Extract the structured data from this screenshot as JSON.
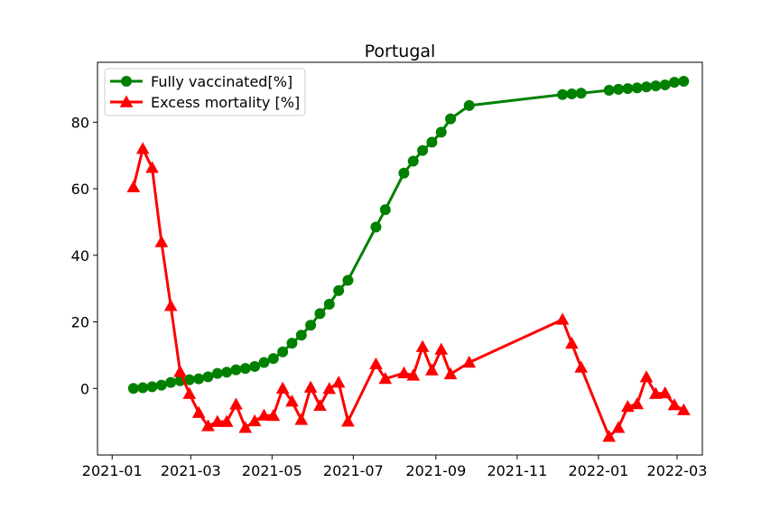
{
  "chart_data": {
    "type": "line",
    "title": "Portugal",
    "xlabel": "",
    "ylabel": "",
    "x_axis_type": "date",
    "xlim": [
      "2020-12-21",
      "2022-03-20"
    ],
    "ylim": [
      -20,
      98
    ],
    "x_ticks": [
      "2021-01-01",
      "2021-03-01",
      "2021-05-01",
      "2021-07-01",
      "2021-09-01",
      "2021-11-01",
      "2022-01-01",
      "2022-03-01"
    ],
    "x_tick_labels": [
      "2021-01",
      "2021-03",
      "2021-05",
      "2021-07",
      "2021-09",
      "2021-11",
      "2022-01",
      "2022-03"
    ],
    "y_ticks": [
      0,
      20,
      40,
      60,
      80
    ],
    "y_tick_labels": [
      "0",
      "20",
      "40",
      "60",
      "80"
    ],
    "grid": false,
    "legend_position": "top-left",
    "series": [
      {
        "name": "Fully vaccinated[%]",
        "color": "#008000",
        "marker": "circle",
        "points": [
          [
            "2021-01-17",
            0.0
          ],
          [
            "2021-01-24",
            0.2
          ],
          [
            "2021-01-31",
            0.5
          ],
          [
            "2021-02-07",
            1.0
          ],
          [
            "2021-02-14",
            1.8
          ],
          [
            "2021-02-21",
            2.3
          ],
          [
            "2021-02-28",
            2.6
          ],
          [
            "2021-03-07",
            2.9
          ],
          [
            "2021-03-14",
            3.5
          ],
          [
            "2021-03-21",
            4.5
          ],
          [
            "2021-03-28",
            4.9
          ],
          [
            "2021-04-04",
            5.6
          ],
          [
            "2021-04-11",
            6.0
          ],
          [
            "2021-04-18",
            6.6
          ],
          [
            "2021-04-25",
            7.8
          ],
          [
            "2021-05-02",
            9.0
          ],
          [
            "2021-05-09",
            11.0
          ],
          [
            "2021-05-16",
            13.6
          ],
          [
            "2021-05-23",
            16.0
          ],
          [
            "2021-05-30",
            19.0
          ],
          [
            "2021-06-06",
            22.5
          ],
          [
            "2021-06-13",
            25.3
          ],
          [
            "2021-06-20",
            29.4
          ],
          [
            "2021-06-27",
            32.5
          ],
          [
            "2021-07-18",
            48.5
          ],
          [
            "2021-07-25",
            53.7
          ],
          [
            "2021-08-08",
            64.7
          ],
          [
            "2021-08-15",
            68.3
          ],
          [
            "2021-08-22",
            71.5
          ],
          [
            "2021-08-29",
            74.0
          ],
          [
            "2021-09-05",
            77.0
          ],
          [
            "2021-09-12",
            81.0
          ],
          [
            "2021-09-26",
            85.0
          ],
          [
            "2021-12-05",
            88.3
          ],
          [
            "2021-12-12",
            88.5
          ],
          [
            "2021-12-19",
            88.7
          ],
          [
            "2022-01-09",
            89.6
          ],
          [
            "2022-01-16",
            89.9
          ],
          [
            "2022-01-23",
            90.1
          ],
          [
            "2022-01-30",
            90.3
          ],
          [
            "2022-02-06",
            90.6
          ],
          [
            "2022-02-13",
            90.9
          ],
          [
            "2022-02-20",
            91.2
          ],
          [
            "2022-02-27",
            92.0
          ],
          [
            "2022-03-06",
            92.3
          ]
        ]
      },
      {
        "name": "Excess mortality [%]",
        "color": "#ff0000",
        "marker": "triangle",
        "points": [
          [
            "2021-01-17",
            60.5
          ],
          [
            "2021-01-24",
            72.0
          ],
          [
            "2021-01-31",
            66.3
          ],
          [
            "2021-02-07",
            44.0
          ],
          [
            "2021-02-14",
            24.8
          ],
          [
            "2021-02-21",
            5.0
          ],
          [
            "2021-02-28",
            -1.6
          ],
          [
            "2021-03-07",
            -7.3
          ],
          [
            "2021-03-14",
            -11.3
          ],
          [
            "2021-03-21",
            -10.0
          ],
          [
            "2021-03-28",
            -10.0
          ],
          [
            "2021-04-04",
            -4.8
          ],
          [
            "2021-04-11",
            -11.8
          ],
          [
            "2021-04-18",
            -9.8
          ],
          [
            "2021-04-25",
            -8.1
          ],
          [
            "2021-05-02",
            -8.2
          ],
          [
            "2021-05-09",
            0.0
          ],
          [
            "2021-05-16",
            -3.9
          ],
          [
            "2021-05-23",
            -9.4
          ],
          [
            "2021-05-30",
            0.3
          ],
          [
            "2021-06-06",
            -5.2
          ],
          [
            "2021-06-13",
            -0.1
          ],
          [
            "2021-06-20",
            1.8
          ],
          [
            "2021-06-27",
            -9.9
          ],
          [
            "2021-07-18",
            7.3
          ],
          [
            "2021-07-25",
            2.9
          ],
          [
            "2021-08-08",
            4.6
          ],
          [
            "2021-08-15",
            3.9
          ],
          [
            "2021-08-22",
            12.5
          ],
          [
            "2021-08-29",
            5.5
          ],
          [
            "2021-09-05",
            11.7
          ],
          [
            "2021-09-12",
            4.3
          ],
          [
            "2021-09-26",
            7.8
          ],
          [
            "2021-12-05",
            20.7
          ],
          [
            "2021-12-12",
            13.5
          ],
          [
            "2021-12-19",
            6.3
          ],
          [
            "2022-01-09",
            -14.5
          ],
          [
            "2022-01-16",
            -11.8
          ],
          [
            "2022-01-23",
            -5.5
          ],
          [
            "2022-01-30",
            -4.7
          ],
          [
            "2022-02-06",
            3.4
          ],
          [
            "2022-02-13",
            -1.6
          ],
          [
            "2022-02-20",
            -1.4
          ],
          [
            "2022-02-27",
            -5.0
          ],
          [
            "2022-03-06",
            -6.5
          ]
        ]
      }
    ]
  }
}
